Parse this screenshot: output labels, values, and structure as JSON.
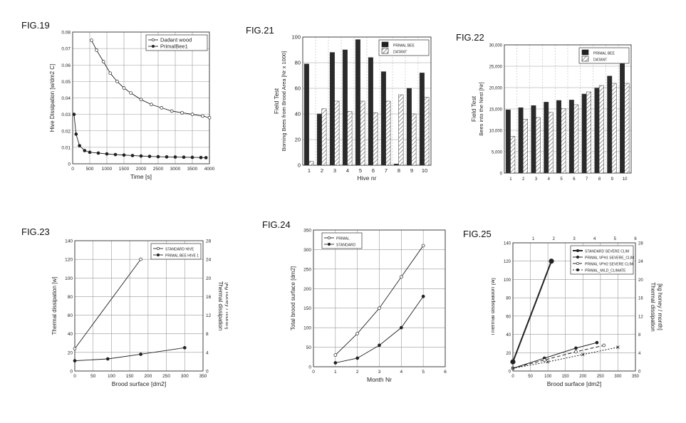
{
  "chart_data": [
    {
      "id": "fig19",
      "label": "FIG.19",
      "type": "line",
      "xlabel": "Time [s]",
      "ylabel": "Hive Dissipation [w/dm2 C]",
      "xlim": [
        0,
        4000
      ],
      "ylim": [
        0,
        0.08
      ],
      "xticks": [
        0,
        500,
        1000,
        1500,
        2000,
        2500,
        3000,
        3500,
        4000
      ],
      "yticks": [
        0,
        0.01,
        0.02,
        0.03,
        0.04,
        0.05,
        0.06,
        0.07,
        0.08
      ],
      "ytick_labels": [
        "0",
        "0.01",
        "0.02",
        "0.03",
        "0.04",
        "0.05",
        "0.06",
        "0.07",
        "0.08"
      ],
      "legend_position": "top-right",
      "grid": true,
      "series": [
        {
          "name": "Dadant wood",
          "marker": "open",
          "x": [
            550,
            700,
            900,
            1100,
            1300,
            1500,
            1700,
            2000,
            2300,
            2600,
            2900,
            3200,
            3500,
            3800,
            4000
          ],
          "y": [
            0.075,
            0.069,
            0.062,
            0.055,
            0.05,
            0.046,
            0.043,
            0.039,
            0.036,
            0.034,
            0.032,
            0.031,
            0.03,
            0.029,
            0.028
          ]
        },
        {
          "name": "PrimalBee1",
          "marker": "filled",
          "x": [
            40,
            100,
            200,
            350,
            500,
            750,
            1000,
            1250,
            1500,
            1750,
            2000,
            2250,
            2500,
            2750,
            3000,
            3250,
            3500,
            3750,
            3900
          ],
          "y": [
            0.03,
            0.018,
            0.011,
            0.008,
            0.007,
            0.0065,
            0.006,
            0.0056,
            0.0053,
            0.005,
            0.0047,
            0.0045,
            0.0043,
            0.0042,
            0.0041,
            0.004,
            0.0039,
            0.0038,
            0.0037
          ]
        }
      ]
    },
    {
      "id": "fig21",
      "label": "FIG.21",
      "type": "bar",
      "title": "Field Test",
      "xlabel": "Hive nr",
      "ylabel": "Borning Bees from Brood Area [Nr x 1000]",
      "ylim": [
        0,
        100
      ],
      "yticks": [
        0,
        20,
        40,
        60,
        80,
        100
      ],
      "categories": [
        "1",
        "2",
        "3",
        "4",
        "5",
        "6",
        "7",
        "8",
        "9",
        "10"
      ],
      "legend_position": "top-right",
      "grid": true,
      "series": [
        {
          "name": "PRIMAL BEE",
          "pattern": "solid",
          "values": [
            79,
            40,
            88,
            90,
            98,
            84,
            73,
            1,
            60,
            72
          ]
        },
        {
          "name": "DATANT",
          "pattern": "hatch",
          "values": [
            3,
            44,
            50,
            42,
            50,
            41,
            50,
            55,
            40,
            53
          ]
        }
      ]
    },
    {
      "id": "fig22",
      "label": "FIG.22",
      "type": "bar",
      "title": "Field Test",
      "ylabel": "Bees into the Nest [Nr]",
      "ylim": [
        0,
        30000
      ],
      "yticks": [
        0,
        5000,
        10000,
        15000,
        20000,
        25000,
        30000
      ],
      "ytick_labels": [
        "0",
        "5,000",
        "10,000",
        "15,000",
        "20,000",
        "25,000",
        "30,000"
      ],
      "categories": [
        "1",
        "2",
        "3",
        "4",
        "5",
        "6",
        "7",
        "8",
        "9",
        "10"
      ],
      "legend_position": "top-right",
      "grid": true,
      "series": [
        {
          "name": "PRIMAL BEE",
          "pattern": "solid",
          "values": [
            14800,
            15300,
            15800,
            16600,
            17000,
            17100,
            18500,
            19900,
            22700,
            26500
          ]
        },
        {
          "name": "DATANT",
          "pattern": "hatch",
          "values": [
            8600,
            12600,
            13000,
            14200,
            15100,
            16000,
            19000,
            20500,
            21000,
            21000
          ]
        }
      ]
    },
    {
      "id": "fig23",
      "label": "FIG.23",
      "type": "line",
      "xlabel": "Brood surface [dm2]",
      "ylabel": "Thermal dissipation [w]",
      "y2label_1": "Thermal dissipation",
      "y2label_2": "[kg honey / month]",
      "xlim": [
        0,
        350
      ],
      "ylim": [
        0,
        140
      ],
      "y2lim": [
        0,
        28
      ],
      "xticks": [
        0,
        50,
        100,
        150,
        200,
        250,
        300,
        350
      ],
      "yticks": [
        0,
        20,
        40,
        60,
        80,
        100,
        120,
        140
      ],
      "y2ticks": [
        0,
        4,
        8,
        12,
        16,
        20,
        24,
        28
      ],
      "legend_position": "top-right",
      "grid": true,
      "series": [
        {
          "name": "STANDARD HIVE",
          "marker": "open",
          "x": [
            0,
            180
          ],
          "y": [
            24,
            120
          ]
        },
        {
          "name": "PRIMAL BEE HIVE 1",
          "marker": "filled",
          "x": [
            0,
            90,
            180,
            300
          ],
          "y": [
            11,
            13,
            18,
            25
          ]
        }
      ]
    },
    {
      "id": "fig24",
      "label": "FIG.24",
      "type": "line",
      "xlabel": "Month Nr",
      "ylabel": "Total brood surface [dm2]",
      "xlim": [
        0,
        6
      ],
      "ylim": [
        0,
        350
      ],
      "xticks": [
        0,
        1,
        2,
        3,
        4,
        5,
        6
      ],
      "yticks": [
        0,
        50,
        100,
        150,
        200,
        250,
        300,
        350
      ],
      "legend_position": "top-left",
      "grid": true,
      "series": [
        {
          "name": "PRIMAL",
          "marker": "open",
          "x": [
            1,
            2,
            3,
            4,
            5
          ],
          "y": [
            30,
            85,
            150,
            230,
            310
          ]
        },
        {
          "name": "STANDARD",
          "marker": "filled",
          "x": [
            1,
            2,
            3,
            4,
            5
          ],
          "y": [
            10,
            22,
            55,
            100,
            180
          ]
        }
      ]
    },
    {
      "id": "fig25",
      "label": "FIG.25",
      "type": "line",
      "xlabel": "Brood surface [dm2]",
      "ylabel": "Thermal dissipation [w]",
      "y2label_1": "Thermal dissipation",
      "y2label_2": "[kg honey / month]",
      "xlim": [
        0,
        350
      ],
      "ylim": [
        0,
        140
      ],
      "y2lim": [
        0,
        28
      ],
      "x2lim": [
        0,
        6
      ],
      "xticks": [
        0,
        50,
        100,
        150,
        200,
        250,
        300,
        350
      ],
      "yticks": [
        0,
        20,
        40,
        60,
        80,
        100,
        120,
        140
      ],
      "y2ticks": [
        0,
        4,
        8,
        12,
        16,
        20,
        24,
        28
      ],
      "x2ticks": [
        1,
        2,
        3,
        4,
        5,
        6
      ],
      "legend_position": "top-right",
      "grid": true,
      "series": [
        {
          "name": "STANDARD SEVERE CLIM",
          "marker": "filled",
          "dash": "",
          "width": 2,
          "x": [
            0,
            110
          ],
          "y": [
            10,
            120
          ]
        },
        {
          "name": "PRIMAL VPH1 SEVERE_CLIM",
          "marker": "filled",
          "dash": "",
          "width": 1,
          "x": [
            0,
            90,
            180,
            240
          ],
          "y": [
            3,
            14,
            25,
            31
          ]
        },
        {
          "name": "PRIMAL VPH2 SEVERE CLIM",
          "marker": "open",
          "dash": "5,3",
          "width": 1,
          "x": [
            0,
            90,
            180,
            260
          ],
          "y": [
            3,
            12,
            21,
            28
          ]
        },
        {
          "name": "PRIMAL_MILD_CLIMATE",
          "marker": "cross",
          "dash": "2,2",
          "width": 1,
          "x": [
            0,
            100,
            200,
            300
          ],
          "y": [
            3,
            10,
            18,
            26
          ]
        }
      ]
    }
  ]
}
